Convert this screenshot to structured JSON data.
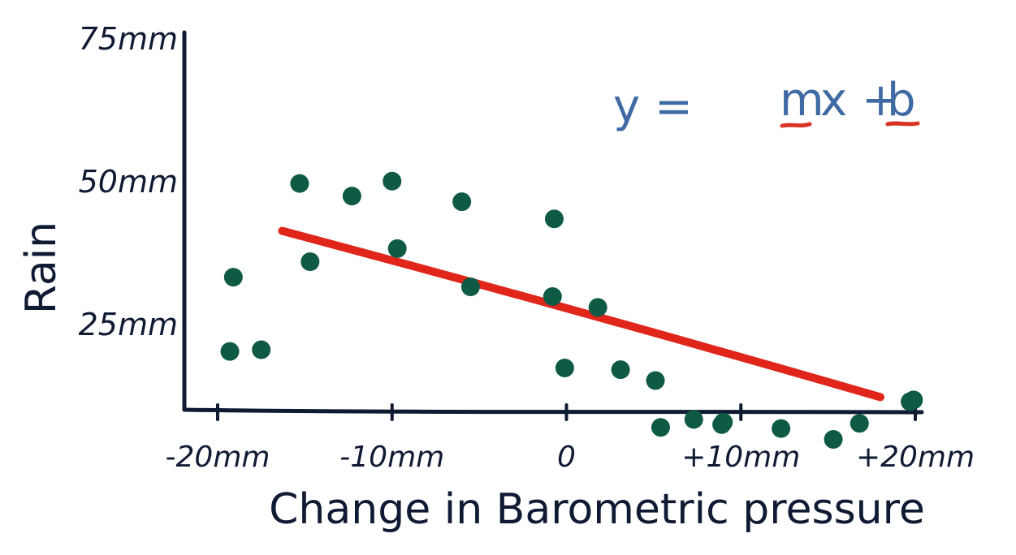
{
  "chart_data": {
    "type": "scatter",
    "xlabel": "Change in Barometric pressure",
    "ylabel": "Rain",
    "x_ticks": [
      {
        "value": -20,
        "label": "-20mm"
      },
      {
        "value": -10,
        "label": "-10mm"
      },
      {
        "value": 0,
        "label": "0"
      },
      {
        "value": 10,
        "label": "+10mm"
      },
      {
        "value": 20,
        "label": "+20mm"
      }
    ],
    "y_ticks": [
      {
        "value": 25,
        "label": "25mm"
      },
      {
        "value": 50,
        "label": "50mm"
      },
      {
        "value": 75,
        "label": "75mm"
      }
    ],
    "xlim": [
      -22,
      20.5
    ],
    "ylim": [
      3,
      79
    ],
    "grid": false,
    "equation": {
      "lhs": "y =",
      "m": "m",
      "x_plus": "x +",
      "b": "b"
    },
    "colors": {
      "points": "#0f5a45",
      "fit_line": "#e0261a",
      "equation": "#3f6aa3",
      "axes": "#0f1a33"
    },
    "points": [
      {
        "x": -19.1,
        "y": 33.3
      },
      {
        "x": -19.3,
        "y": 20.3
      },
      {
        "x": -17.5,
        "y": 20.6
      },
      {
        "x": -15.3,
        "y": 49.7
      },
      {
        "x": -14.7,
        "y": 36.0
      },
      {
        "x": -12.3,
        "y": 47.5
      },
      {
        "x": -10.0,
        "y": 50.1
      },
      {
        "x": -9.7,
        "y": 38.3
      },
      {
        "x": -6.0,
        "y": 46.5
      },
      {
        "x": -5.5,
        "y": 31.6
      },
      {
        "x": -0.7,
        "y": 43.5
      },
      {
        "x": -0.8,
        "y": 29.9
      },
      {
        "x": -0.1,
        "y": 17.4
      },
      {
        "x": 1.8,
        "y": 28.0
      },
      {
        "x": 3.1,
        "y": 17.1
      },
      {
        "x": 5.1,
        "y": 15.2
      },
      {
        "x": 5.4,
        "y": 7.0
      },
      {
        "x": 7.3,
        "y": 8.4
      },
      {
        "x": 8.9,
        "y": 7.5
      },
      {
        "x": 9.0,
        "y": 7.9
      },
      {
        "x": 12.3,
        "y": 6.8
      },
      {
        "x": 15.3,
        "y": 4.9
      },
      {
        "x": 16.8,
        "y": 7.7
      },
      {
        "x": 19.7,
        "y": 11.5
      },
      {
        "x": 19.9,
        "y": 11.8
      }
    ],
    "fit_line": {
      "x": [
        -16.3,
        18.0
      ],
      "y": [
        41.4,
        12.3
      ]
    }
  }
}
